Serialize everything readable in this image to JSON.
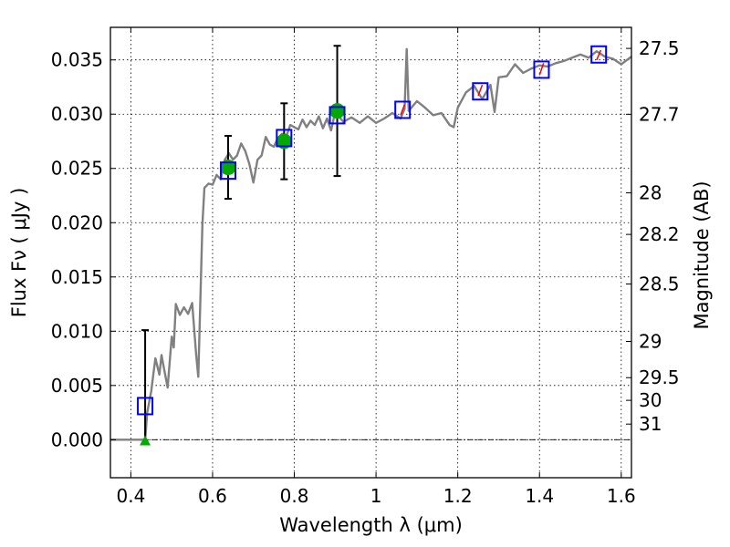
{
  "chart_data": {
    "type": "scatter",
    "xlabel": "Wavelength  λ (μm)",
    "ylabel": "Flux  Fν  ( μJy )",
    "ylabel_right": "Magnitude (AB)",
    "xlim": [
      0.35,
      1.625
    ],
    "ylim": [
      -0.0035,
      0.038
    ],
    "grid": true,
    "x_ticks": [
      0.4,
      0.6,
      0.8,
      1.0,
      1.2,
      1.4,
      1.6
    ],
    "x_tick_labels": [
      "0.4",
      "0.6",
      "0.8",
      "1",
      "1.2",
      "1.4",
      "1.6"
    ],
    "y_ticks": [
      0.0,
      0.005,
      0.01,
      0.015,
      0.02,
      0.025,
      0.03,
      0.035
    ],
    "y_tick_labels": [
      "0.000",
      "0.005",
      "0.010",
      "0.015",
      "0.020",
      "0.025",
      "0.030",
      "0.035"
    ],
    "right_ticks": [
      {
        "label": "27.5",
        "flux": 0.03606
      },
      {
        "label": "27.7",
        "flux": 0.02999
      },
      {
        "label": "28",
        "flux": 0.02275
      },
      {
        "label": "28.2",
        "flux": 0.01892
      },
      {
        "label": "28.5",
        "flux": 0.01435
      },
      {
        "label": "29",
        "flux": 0.00906
      },
      {
        "label": "29.5",
        "flux": 0.00572
      },
      {
        "label": "30",
        "flux": 0.00363
      },
      {
        "label": "31",
        "flux": 0.00144
      }
    ],
    "model_spectrum": {
      "color": "#808080",
      "x": [
        0.35,
        0.42,
        0.43,
        0.435,
        0.44,
        0.45,
        0.455,
        0.46,
        0.47,
        0.475,
        0.48,
        0.49,
        0.5,
        0.505,
        0.51,
        0.52,
        0.53,
        0.54,
        0.55,
        0.56,
        0.565,
        0.575,
        0.58,
        0.59,
        0.6,
        0.61,
        0.62,
        0.63,
        0.64,
        0.65,
        0.66,
        0.67,
        0.68,
        0.69,
        0.7,
        0.71,
        0.72,
        0.73,
        0.74,
        0.75,
        0.76,
        0.77,
        0.78,
        0.79,
        0.8,
        0.81,
        0.82,
        0.83,
        0.84,
        0.85,
        0.86,
        0.87,
        0.88,
        0.89,
        0.9,
        0.92,
        0.94,
        0.96,
        0.98,
        1.0,
        1.02,
        1.04,
        1.06,
        1.07,
        1.075,
        1.08,
        1.1,
        1.12,
        1.14,
        1.16,
        1.18,
        1.19,
        1.2,
        1.22,
        1.24,
        1.26,
        1.28,
        1.29,
        1.3,
        1.32,
        1.34,
        1.36,
        1.38,
        1.4,
        1.42,
        1.44,
        1.46,
        1.48,
        1.5,
        1.52,
        1.54,
        1.56,
        1.58,
        1.6,
        1.625
      ],
      "y": [
        0.0,
        0.0,
        0.0,
        0.0,
        0.0025,
        0.0045,
        0.006,
        0.0075,
        0.006,
        0.0078,
        0.0068,
        0.0048,
        0.0095,
        0.0085,
        0.0125,
        0.0115,
        0.0122,
        0.0116,
        0.0126,
        0.0078,
        0.0058,
        0.0198,
        0.0232,
        0.0236,
        0.0235,
        0.0244,
        0.024,
        0.0258,
        0.0264,
        0.0258,
        0.0262,
        0.0273,
        0.0266,
        0.0254,
        0.0237,
        0.0258,
        0.0262,
        0.0279,
        0.0272,
        0.027,
        0.0278,
        0.0282,
        0.0279,
        0.029,
        0.0288,
        0.0286,
        0.0295,
        0.0288,
        0.0294,
        0.029,
        0.0298,
        0.0287,
        0.0296,
        0.0285,
        0.0302,
        0.0293,
        0.0297,
        0.0292,
        0.0298,
        0.0292,
        0.0296,
        0.0301,
        0.0296,
        0.0305,
        0.036,
        0.0303,
        0.0312,
        0.0306,
        0.0299,
        0.0301,
        0.029,
        0.0288,
        0.0306,
        0.032,
        0.0326,
        0.0314,
        0.0327,
        0.0302,
        0.0334,
        0.0335,
        0.0346,
        0.0338,
        0.0342,
        0.0345,
        0.0344,
        0.0347,
        0.0349,
        0.0352,
        0.0355,
        0.0352,
        0.0358,
        0.0353,
        0.0351,
        0.0346,
        0.0353
      ]
    },
    "synthetic_photometry": {
      "marker": "square",
      "color": "#0000ff",
      "x": [
        0.435,
        0.638,
        0.775,
        0.905,
        1.065,
        1.255,
        1.405,
        1.545
      ],
      "y": [
        0.0031,
        0.0248,
        0.0278,
        0.0299,
        0.0304,
        0.0321,
        0.0341,
        0.0355
      ]
    },
    "observed_points": {
      "marker": "circle",
      "color": "#00aa00",
      "x": [
        0.638,
        0.775,
        0.905
      ],
      "y": [
        0.0251,
        0.0275,
        0.0303
      ],
      "yerr": [
        0.0029,
        0.0035,
        0.006
      ]
    },
    "upper_limit": {
      "marker": "triangle",
      "color": "#00aa00",
      "x": 0.435,
      "y": -0.0001,
      "err_top": 0.0101
    },
    "red_segments": {
      "color": "#ff0000",
      "items": [
        {
          "x": [
            1.06,
            1.07
          ],
          "y": [
            0.0299,
            0.0309
          ]
        },
        {
          "x": [
            1.25,
            1.26
          ],
          "y": [
            0.0317,
            0.0327
          ]
        },
        {
          "x": [
            1.4,
            1.41
          ],
          "y": [
            0.0336,
            0.0347
          ]
        },
        {
          "x": [
            1.54,
            1.55
          ],
          "y": [
            0.035,
            0.0359
          ]
        }
      ]
    }
  }
}
